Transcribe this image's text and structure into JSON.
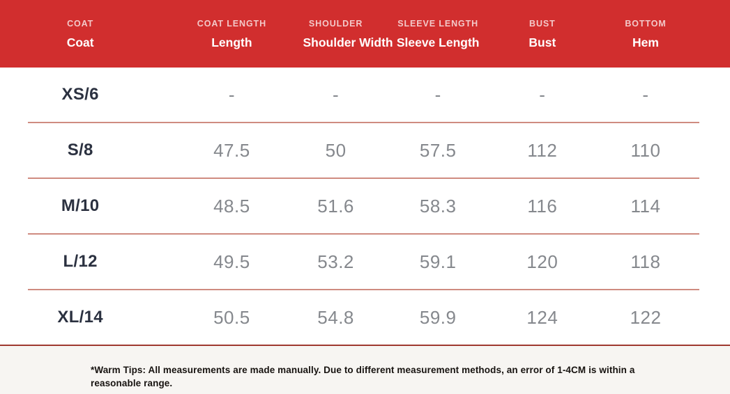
{
  "chart_data": {
    "type": "table",
    "header": [
      {
        "top": "COAT",
        "bottom": "Coat"
      },
      {
        "top": "COAT LENGTH",
        "bottom": "Length"
      },
      {
        "top": "SHOULDER",
        "bottom": "Shoulder Width"
      },
      {
        "top": "SLEEVE LENGTH",
        "bottom": "Sleeve Length"
      },
      {
        "top": "BUST",
        "bottom": "Bust"
      },
      {
        "top": "BOTTOM",
        "bottom": "Hem"
      }
    ],
    "rows": [
      {
        "size": "XS/6",
        "values": [
          "-",
          "-",
          "-",
          "-",
          "-"
        ]
      },
      {
        "size": "S/8",
        "values": [
          "47.5",
          "50",
          "57.5",
          "112",
          "110"
        ]
      },
      {
        "size": "M/10",
        "values": [
          "48.5",
          "51.6",
          "58.3",
          "116",
          "114"
        ]
      },
      {
        "size": "L/12",
        "values": [
          "49.5",
          "53.2",
          "59.1",
          "120",
          "118"
        ]
      },
      {
        "size": "XL/14",
        "values": [
          "50.5",
          "54.8",
          "59.9",
          "124",
          "122"
        ]
      }
    ]
  },
  "footer": {
    "warm_tips": "*Warm Tips: All measurements are made manually. Due to different measurement methods, an error of 1-4CM is within a reasonable range."
  },
  "colors": {
    "header_bg": "#d12e2e",
    "header_subtext": "#f3bdbb",
    "header_text": "#ffffff",
    "size_text": "#2b3140",
    "value_text": "#85888d",
    "row_separator": "#cf8b80",
    "footer_divider": "#9e382e",
    "footer_bg": "#f7f5f2",
    "footer_text": "#171310"
  }
}
